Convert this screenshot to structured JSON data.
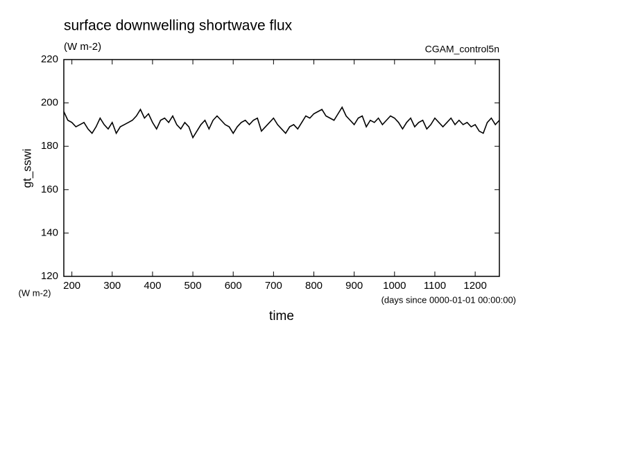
{
  "chart_data": {
    "type": "line",
    "title": "surface downwelling shortwave flux",
    "subtitle": "(W m-2)",
    "annotation": "CGAM_control5n",
    "y_label": "gt_sswi",
    "y_units": "(W m-2)",
    "x_units": "(days since 0000-01-01 00:00:00)",
    "x_label": "time",
    "x": [
      180,
      190,
      200,
      210,
      220,
      230,
      240,
      250,
      260,
      270,
      280,
      290,
      300,
      310,
      320,
      330,
      340,
      350,
      360,
      370,
      380,
      390,
      400,
      410,
      420,
      430,
      440,
      450,
      460,
      470,
      480,
      490,
      500,
      510,
      520,
      530,
      540,
      550,
      560,
      570,
      580,
      590,
      600,
      610,
      620,
      630,
      640,
      650,
      660,
      670,
      680,
      690,
      700,
      710,
      720,
      730,
      740,
      750,
      760,
      770,
      780,
      790,
      800,
      810,
      820,
      830,
      840,
      850,
      860,
      870,
      880,
      890,
      900,
      910,
      920,
      930,
      940,
      950,
      960,
      970,
      980,
      990,
      1000,
      1010,
      1020,
      1030,
      1040,
      1050,
      1060,
      1070,
      1080,
      1090,
      1100,
      1110,
      1120,
      1130,
      1140,
      1150,
      1160,
      1170,
      1180,
      1190,
      1200,
      1210,
      1220,
      1230,
      1240,
      1250,
      1260
    ],
    "series": [
      {
        "color": "#000000",
        "values": [
          196,
          192,
          191,
          189,
          190,
          191,
          188,
          186,
          189,
          193,
          190,
          188,
          191,
          186,
          189,
          190,
          191,
          192,
          194,
          197,
          193,
          195,
          191,
          188,
          192,
          193,
          191,
          194,
          190,
          188,
          191,
          189,
          184,
          187,
          190,
          192,
          188,
          192,
          194,
          192,
          190,
          189,
          186,
          189,
          191,
          192,
          190,
          192,
          193,
          187,
          189,
          191,
          193,
          190,
          188,
          186,
          189,
          190,
          188,
          191,
          194,
          193,
          195,
          196,
          197,
          194,
          193,
          192,
          195,
          198,
          194,
          192,
          190,
          193,
          194,
          189,
          192,
          191,
          193,
          190,
          192,
          194,
          193,
          191,
          188,
          191,
          193,
          189,
          191,
          192,
          188,
          190,
          193,
          191,
          189,
          191,
          193,
          190,
          192,
          190,
          191,
          189,
          190,
          187,
          186,
          191,
          193,
          190,
          192
        ]
      }
    ],
    "xlim": [
      180,
      1260
    ],
    "ylim": [
      120,
      220
    ],
    "xticks": [
      200,
      300,
      400,
      500,
      600,
      700,
      800,
      900,
      1000,
      1100,
      1200
    ],
    "yticks": [
      120,
      140,
      160,
      180,
      200,
      220
    ]
  }
}
